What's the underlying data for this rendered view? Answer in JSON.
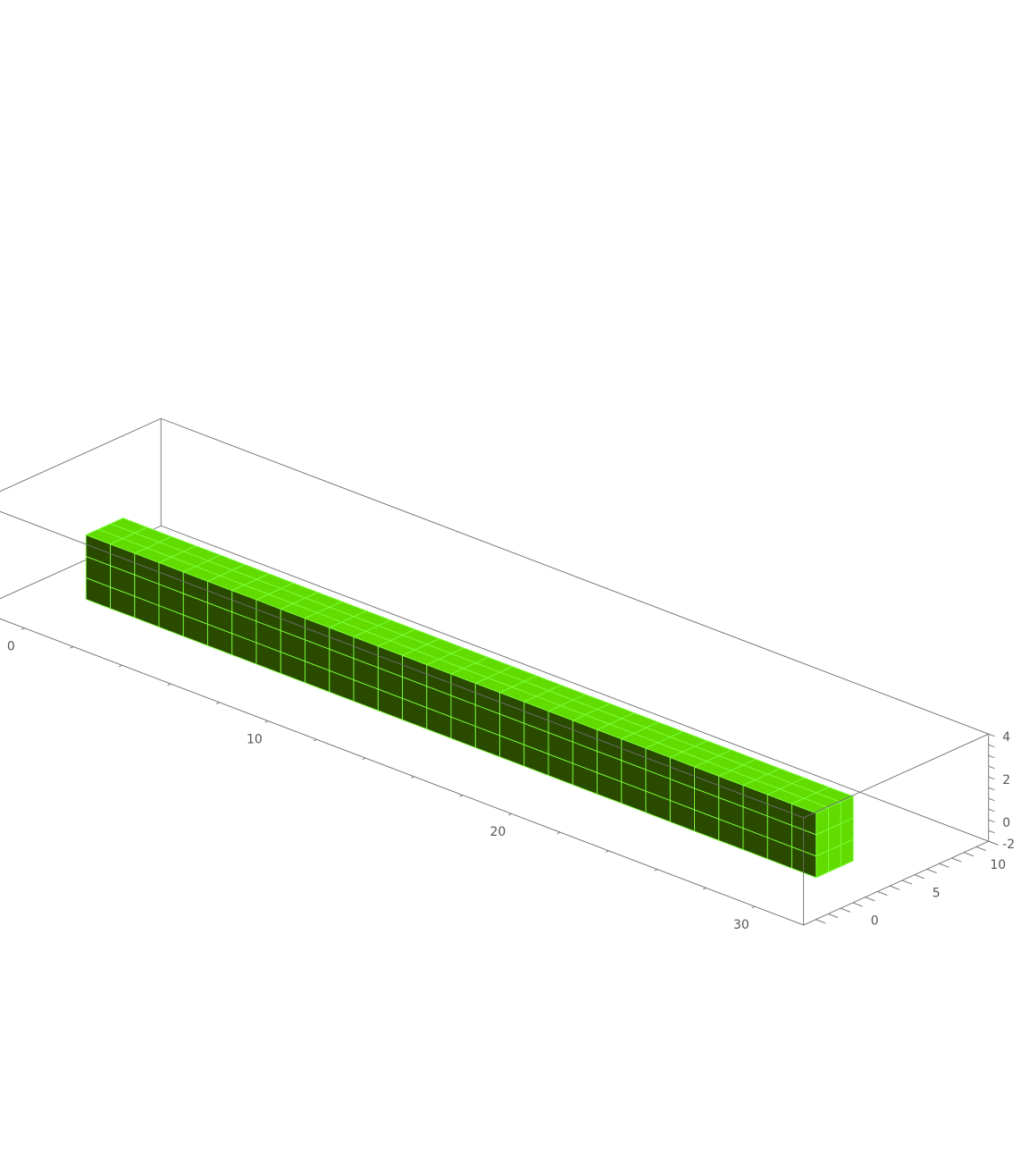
{
  "chart_data": {
    "type": "voxel-3d",
    "title": "",
    "xlabel": "",
    "ylabel": "",
    "zlabel": "",
    "xlim": [
      -2,
      32
    ],
    "ylim": [
      -3,
      12
    ],
    "zlim": [
      -1,
      4
    ],
    "x_ticks": [
      {
        "value": 0,
        "label": "0"
      },
      {
        "value": 10,
        "label": "10"
      },
      {
        "value": 20,
        "label": "20"
      },
      {
        "value": 30,
        "label": "30"
      }
    ],
    "y_ticks": [
      {
        "value": 0,
        "label": "0"
      },
      {
        "value": 5,
        "label": "5"
      },
      {
        "value": 10,
        "label": "10"
      }
    ],
    "z_ticks": [
      {
        "value": 0,
        "label": "0"
      },
      {
        "value": 2,
        "label": "2"
      },
      {
        "value": 4,
        "label": "4"
      },
      {
        "value": -2,
        "label": "-2"
      }
    ],
    "block": {
      "x_range": [
        1,
        31
      ],
      "y_range": [
        0,
        3
      ],
      "z_range": [
        0,
        3
      ],
      "voxel_size": 1
    },
    "colors": {
      "top_face": "#62dc00",
      "side_face": "#2a4a00",
      "grid_lines": "#7cff3a",
      "frame": "#6e6e6e",
      "tick_text": "#555555"
    },
    "grid": false,
    "boxed": true
  }
}
